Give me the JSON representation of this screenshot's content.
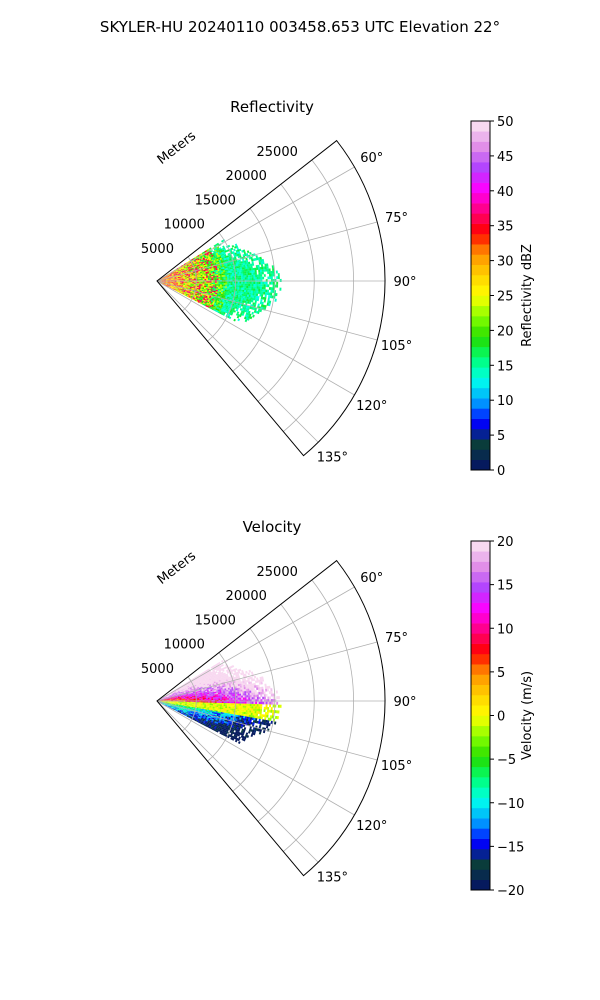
{
  "figure_title": "SKYLER-HU  20240110  003458.653 UTC Elevation 22°",
  "chart_data": [
    {
      "type": "polar-sector",
      "title": "Reflectivity",
      "range_label": "Meters",
      "range_ticks": [
        "5000",
        "10000",
        "15000",
        "20000",
        "25000"
      ],
      "range_max": 29000,
      "azimuth_ticks": [
        "60°",
        "75°",
        "90°",
        "105°",
        "120°",
        "135°"
      ],
      "azimuth_range_deg": [
        52,
        140
      ],
      "colorbar": {
        "label": "Reflectivity dBZ",
        "min": 0,
        "max": 50,
        "ticks": [
          "0",
          "5",
          "10",
          "15",
          "20",
          "25",
          "30",
          "35",
          "40",
          "45",
          "50"
        ]
      },
      "colors": [
        "#061a5e",
        "#0a3d3a",
        "#0000ff",
        "#00a0ff",
        "#00ffee",
        "#00ff7a",
        "#22dd00",
        "#88ff00",
        "#ffff00",
        "#ffd000",
        "#ff9000",
        "#ff0000",
        "#ff0080",
        "#ff00ff",
        "#b040ff",
        "#e08ce8",
        "#f8d8f0"
      ]
    },
    {
      "type": "polar-sector",
      "title": "Velocity",
      "range_label": "Meters",
      "range_ticks": [
        "5000",
        "10000",
        "15000",
        "20000",
        "25000"
      ],
      "range_max": 29000,
      "azimuth_ticks": [
        "60°",
        "75°",
        "90°",
        "105°",
        "120°",
        "135°"
      ],
      "azimuth_range_deg": [
        52,
        140
      ],
      "colorbar": {
        "label": "Velocity (m/s)",
        "min": -20,
        "max": 20,
        "ticks": [
          "−20",
          "−15",
          "−10",
          "−5",
          "0",
          "5",
          "10",
          "15",
          "20"
        ]
      },
      "colors": [
        "#061a5e",
        "#0a3d3a",
        "#0000ff",
        "#00a0ff",
        "#00ffee",
        "#00ff7a",
        "#22dd00",
        "#88ff00",
        "#ffff00",
        "#ffd000",
        "#ff9000",
        "#ff0000",
        "#ff0080",
        "#ff00ff",
        "#b040ff",
        "#e08ce8",
        "#f8d8f0"
      ]
    }
  ]
}
